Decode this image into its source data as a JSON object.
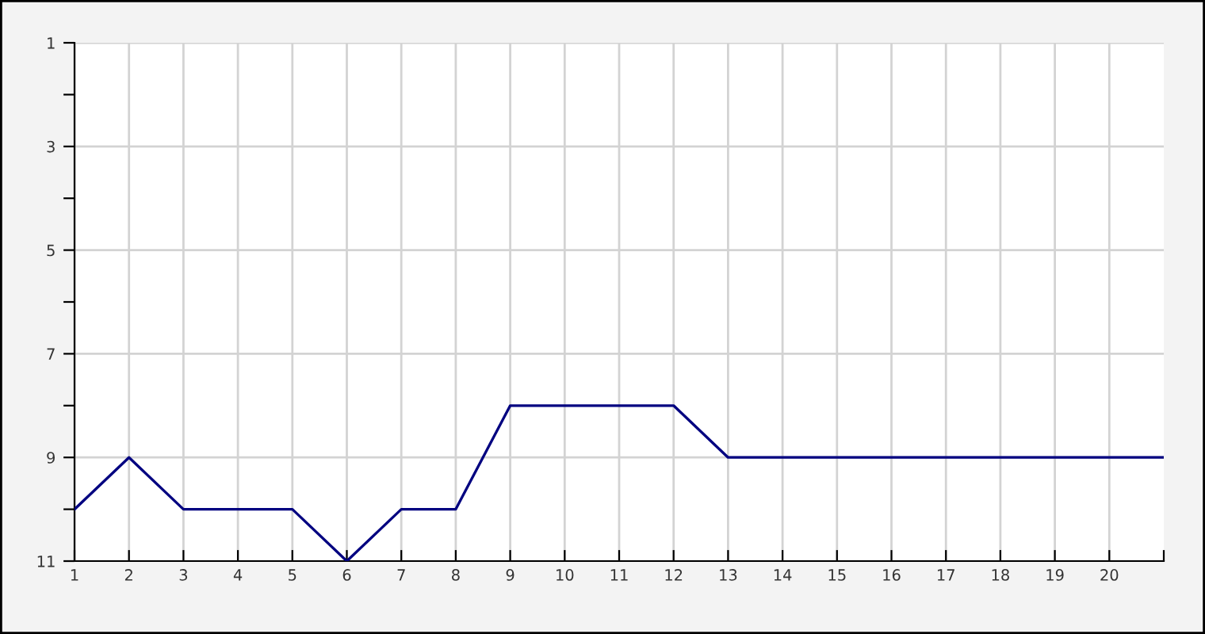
{
  "chart_data": {
    "type": "line",
    "x": [
      1,
      2,
      3,
      4,
      5,
      6,
      7,
      8,
      9,
      10,
      11,
      12,
      13,
      14,
      15,
      16,
      17,
      18,
      19,
      20,
      21
    ],
    "series": [
      {
        "color": "#000080",
        "values": [
          10,
          9,
          10,
          10,
          10,
          11,
          10,
          10,
          8,
          8,
          8,
          8,
          9,
          9,
          9,
          9,
          9,
          9,
          9,
          9,
          9
        ]
      }
    ],
    "xlim": [
      1,
      21
    ],
    "xticks": [
      1,
      2,
      3,
      4,
      5,
      6,
      7,
      8,
      9,
      10,
      11,
      12,
      13,
      14,
      15,
      16,
      17,
      18,
      19,
      20,
      {
        "value": 21,
        "label": null
      }
    ],
    "ylim": [
      11,
      1
    ],
    "yticks": [
      1,
      {
        "value": 2,
        "label": null
      },
      3,
      {
        "value": 4,
        "label": null
      },
      5,
      {
        "value": 6,
        "label": null
      },
      7,
      {
        "value": 8,
        "label": null
      },
      9,
      {
        "value": 10,
        "label": null
      },
      11
    ],
    "grid": true,
    "marker": "none",
    "line_style": "solid"
  }
}
